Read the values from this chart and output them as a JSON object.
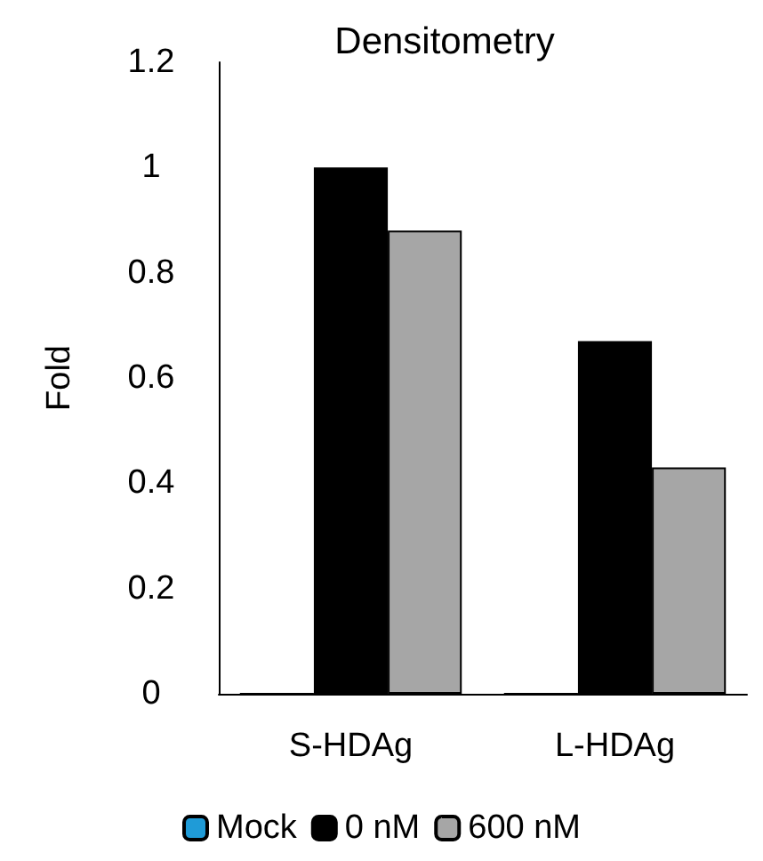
{
  "chart_data": {
    "type": "bar",
    "title": "Densitometry",
    "ylabel": "Fold",
    "categories": [
      "S-HDAg",
      "L-HDAg"
    ],
    "series": [
      {
        "name": "Mock",
        "color": "#1f9bd7",
        "values": [
          0,
          0
        ]
      },
      {
        "name": "0 nM",
        "color": "#000000",
        "values": [
          1,
          0.67
        ]
      },
      {
        "name": "600 nM",
        "color": "#a6a6a6",
        "values": [
          0.88,
          0.43
        ]
      }
    ],
    "ylim": [
      0,
      1.2
    ],
    "yticks": [
      0,
      0.2,
      0.4,
      0.6,
      0.8,
      1,
      1.2
    ],
    "grid": false,
    "legend": "bottom"
  }
}
